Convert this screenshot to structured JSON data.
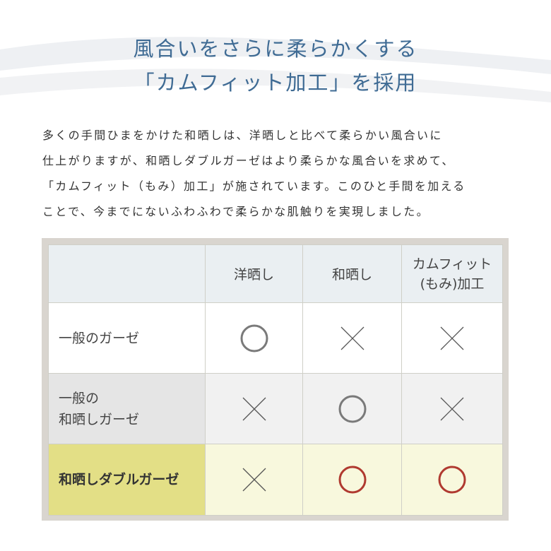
{
  "heading": {
    "line1": "風合いをさらに柔らかくする",
    "line2": "「カムフィット加工」を採用"
  },
  "paragraph": [
    "多くの手間ひまをかけた和晒しは、洋晒しと比べて柔らかい風合いに",
    "仕上がりますが、和晒しダブルガーゼはより柔らかな風合いを求めて、",
    "「カムフィット（もみ）加工」が施されています。このひと手間を加える",
    "ことで、今までにないふわふわで柔らかな肌触りを実現しました。"
  ],
  "table": {
    "columns": [
      "",
      "洋晒し",
      "和晒し",
      "カムフィット\n(もみ)加工"
    ],
    "columns_lines": [
      [
        "カムフィット",
        "(もみ)加工"
      ]
    ],
    "rows": [
      {
        "label_lines": [
          "一般のガーゼ"
        ],
        "values": [
          "circle",
          "cross",
          "cross"
        ]
      },
      {
        "label_lines": [
          "一般の",
          "和晒しガーゼ"
        ],
        "values": [
          "cross",
          "circle",
          "cross"
        ]
      },
      {
        "label_lines": [
          "和晒しダブルガーゼ"
        ],
        "values": [
          "cross",
          "circle-red",
          "circle-red"
        ],
        "highlight": true
      }
    ]
  },
  "colors": {
    "title": "#3f6b94",
    "circle": "#7a7a7a",
    "circle_red": "#b03a30",
    "cross": "#555555",
    "highlight": "#e3df86",
    "highlight_cells": "#f8f8dd",
    "header_bg": "#eaeff2",
    "frame": "#d9d5cf"
  }
}
